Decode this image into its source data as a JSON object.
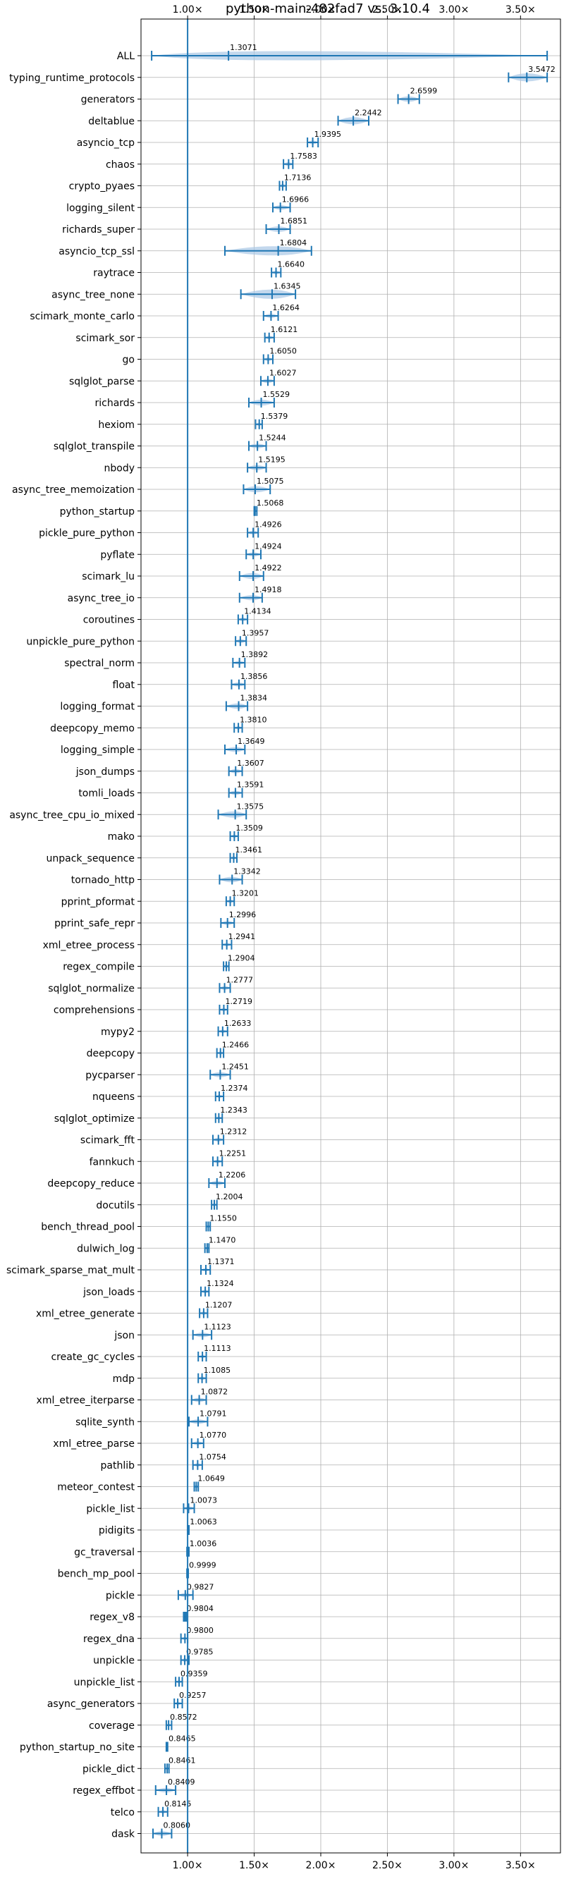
{
  "chart_data": {
    "type": "violin",
    "title": "python-main-482fad7 vs. 3.10.4",
    "xlabel": "",
    "ylabel": "",
    "x_scale": "linear",
    "xlim": [
      0.65,
      3.8
    ],
    "xticks": [
      1.0,
      1.5,
      2.0,
      2.5,
      3.0,
      3.5
    ],
    "xtick_labels": [
      "1.00×",
      "1.50×",
      "2.00×",
      "2.50×",
      "3.00×",
      "3.50×"
    ],
    "grid": true,
    "reference_line": 1.0,
    "colors": {
      "line": "#1f77b4",
      "violin": "#a9c8e6",
      "grid": "#b0b0b0",
      "axis": "#000000"
    },
    "categories": [
      {
        "name": "ALL",
        "value": 1.3071,
        "min": 0.73,
        "max": 3.7,
        "spread": 0.45
      },
      {
        "name": "typing_runtime_protocols",
        "value": 3.5472,
        "min": 3.41,
        "max": 3.7,
        "spread": 0.14
      },
      {
        "name": "generators",
        "value": 2.6599,
        "min": 2.58,
        "max": 2.74,
        "spread": 0.08
      },
      {
        "name": "deltablue",
        "value": 2.2442,
        "min": 2.13,
        "max": 2.36,
        "spread": 0.12
      },
      {
        "name": "asyncio_tcp",
        "value": 1.9395,
        "min": 1.9,
        "max": 1.98,
        "spread": 0.04
      },
      {
        "name": "chaos",
        "value": 1.7583,
        "min": 1.72,
        "max": 1.79,
        "spread": 0.04
      },
      {
        "name": "crypto_pyaes",
        "value": 1.7136,
        "min": 1.69,
        "max": 1.74,
        "spread": 0.03
      },
      {
        "name": "logging_silent",
        "value": 1.6966,
        "min": 1.64,
        "max": 1.77,
        "spread": 0.06
      },
      {
        "name": "richards_super",
        "value": 1.6851,
        "min": 1.59,
        "max": 1.77,
        "spread": 0.08
      },
      {
        "name": "asyncio_tcp_ssl",
        "value": 1.6804,
        "min": 1.28,
        "max": 1.93,
        "spread": 0.3
      },
      {
        "name": "raytrace",
        "value": 1.664,
        "min": 1.63,
        "max": 1.7,
        "spread": 0.03
      },
      {
        "name": "async_tree_none",
        "value": 1.6345,
        "min": 1.4,
        "max": 1.81,
        "spread": 0.2
      },
      {
        "name": "scimark_monte_carlo",
        "value": 1.6264,
        "min": 1.57,
        "max": 1.68,
        "spread": 0.05
      },
      {
        "name": "scimark_sor",
        "value": 1.6121,
        "min": 1.58,
        "max": 1.65,
        "spread": 0.03
      },
      {
        "name": "go",
        "value": 1.605,
        "min": 1.57,
        "max": 1.64,
        "spread": 0.03
      },
      {
        "name": "sqlglot_parse",
        "value": 1.6027,
        "min": 1.55,
        "max": 1.65,
        "spread": 0.05
      },
      {
        "name": "richards",
        "value": 1.5529,
        "min": 1.46,
        "max": 1.65,
        "spread": 0.09
      },
      {
        "name": "hexiom",
        "value": 1.5379,
        "min": 1.51,
        "max": 1.56,
        "spread": 0.02
      },
      {
        "name": "sqlglot_transpile",
        "value": 1.5244,
        "min": 1.46,
        "max": 1.59,
        "spread": 0.06
      },
      {
        "name": "nbody",
        "value": 1.5195,
        "min": 1.45,
        "max": 1.59,
        "spread": 0.07
      },
      {
        "name": "async_tree_memoization",
        "value": 1.5075,
        "min": 1.42,
        "max": 1.62,
        "spread": 0.09
      },
      {
        "name": "python_startup",
        "value": 1.5068,
        "min": 1.5,
        "max": 1.52,
        "spread": 0.01
      },
      {
        "name": "pickle_pure_python",
        "value": 1.4926,
        "min": 1.45,
        "max": 1.53,
        "spread": 0.04
      },
      {
        "name": "pyflate",
        "value": 1.4924,
        "min": 1.44,
        "max": 1.55,
        "spread": 0.05
      },
      {
        "name": "scimark_lu",
        "value": 1.4922,
        "min": 1.39,
        "max": 1.57,
        "spread": 0.09
      },
      {
        "name": "async_tree_io",
        "value": 1.4918,
        "min": 1.39,
        "max": 1.56,
        "spread": 0.07
      },
      {
        "name": "coroutines",
        "value": 1.4134,
        "min": 1.38,
        "max": 1.45,
        "spread": 0.03
      },
      {
        "name": "unpickle_pure_python",
        "value": 1.3957,
        "min": 1.36,
        "max": 1.44,
        "spread": 0.04
      },
      {
        "name": "spectral_norm",
        "value": 1.3892,
        "min": 1.34,
        "max": 1.43,
        "spread": 0.04
      },
      {
        "name": "float",
        "value": 1.3856,
        "min": 1.33,
        "max": 1.43,
        "spread": 0.05
      },
      {
        "name": "logging_format",
        "value": 1.3834,
        "min": 1.29,
        "max": 1.45,
        "spread": 0.08
      },
      {
        "name": "deepcopy_memo",
        "value": 1.381,
        "min": 1.35,
        "max": 1.41,
        "spread": 0.03
      },
      {
        "name": "logging_simple",
        "value": 1.3649,
        "min": 1.28,
        "max": 1.43,
        "spread": 0.07
      },
      {
        "name": "json_dumps",
        "value": 1.3607,
        "min": 1.31,
        "max": 1.41,
        "spread": 0.05
      },
      {
        "name": "tomli_loads",
        "value": 1.3591,
        "min": 1.31,
        "max": 1.41,
        "spread": 0.05
      },
      {
        "name": "async_tree_cpu_io_mixed",
        "value": 1.3575,
        "min": 1.23,
        "max": 1.44,
        "spread": 0.1
      },
      {
        "name": "mako",
        "value": 1.3509,
        "min": 1.32,
        "max": 1.38,
        "spread": 0.03
      },
      {
        "name": "unpack_sequence",
        "value": 1.3461,
        "min": 1.32,
        "max": 1.37,
        "spread": 0.02
      },
      {
        "name": "tornado_http",
        "value": 1.3342,
        "min": 1.24,
        "max": 1.41,
        "spread": 0.08
      },
      {
        "name": "pprint_pformat",
        "value": 1.3201,
        "min": 1.29,
        "max": 1.35,
        "spread": 0.03
      },
      {
        "name": "pprint_safe_repr",
        "value": 1.2996,
        "min": 1.25,
        "max": 1.35,
        "spread": 0.05
      },
      {
        "name": "xml_etree_process",
        "value": 1.2941,
        "min": 1.26,
        "max": 1.33,
        "spread": 0.03
      },
      {
        "name": "regex_compile",
        "value": 1.2904,
        "min": 1.27,
        "max": 1.31,
        "spread": 0.02
      },
      {
        "name": "sqlglot_normalize",
        "value": 1.2777,
        "min": 1.24,
        "max": 1.32,
        "spread": 0.04
      },
      {
        "name": "comprehensions",
        "value": 1.2719,
        "min": 1.24,
        "max": 1.3,
        "spread": 0.03
      },
      {
        "name": "mypy2",
        "value": 1.2633,
        "min": 1.23,
        "max": 1.3,
        "spread": 0.03
      },
      {
        "name": "deepcopy",
        "value": 1.2466,
        "min": 1.22,
        "max": 1.27,
        "spread": 0.02
      },
      {
        "name": "pycparser",
        "value": 1.2451,
        "min": 1.17,
        "max": 1.32,
        "spread": 0.07
      },
      {
        "name": "nqueens",
        "value": 1.2374,
        "min": 1.21,
        "max": 1.27,
        "spread": 0.03
      },
      {
        "name": "sqlglot_optimize",
        "value": 1.2343,
        "min": 1.21,
        "max": 1.26,
        "spread": 0.02
      },
      {
        "name": "scimark_fft",
        "value": 1.2312,
        "min": 1.19,
        "max": 1.27,
        "spread": 0.04
      },
      {
        "name": "fannkuch",
        "value": 1.2251,
        "min": 1.19,
        "max": 1.26,
        "spread": 0.03
      },
      {
        "name": "deepcopy_reduce",
        "value": 1.2206,
        "min": 1.16,
        "max": 1.28,
        "spread": 0.06
      },
      {
        "name": "docutils",
        "value": 1.2004,
        "min": 1.18,
        "max": 1.22,
        "spread": 0.02
      },
      {
        "name": "bench_thread_pool",
        "value": 1.155,
        "min": 1.14,
        "max": 1.17,
        "spread": 0.01
      },
      {
        "name": "dulwich_log",
        "value": 1.147,
        "min": 1.13,
        "max": 1.16,
        "spread": 0.01
      },
      {
        "name": "scimark_sparse_mat_mult",
        "value": 1.1371,
        "min": 1.1,
        "max": 1.17,
        "spread": 0.03
      },
      {
        "name": "json_loads",
        "value": 1.1324,
        "min": 1.1,
        "max": 1.16,
        "spread": 0.03
      },
      {
        "name": "xml_etree_generate",
        "value": 1.1207,
        "min": 1.09,
        "max": 1.15,
        "spread": 0.03
      },
      {
        "name": "json",
        "value": 1.1123,
        "min": 1.04,
        "max": 1.18,
        "spread": 0.06
      },
      {
        "name": "create_gc_cycles",
        "value": 1.1113,
        "min": 1.08,
        "max": 1.14,
        "spread": 0.03
      },
      {
        "name": "mdp",
        "value": 1.1085,
        "min": 1.08,
        "max": 1.14,
        "spread": 0.03
      },
      {
        "name": "xml_etree_iterparse",
        "value": 1.0872,
        "min": 1.03,
        "max": 1.14,
        "spread": 0.05
      },
      {
        "name": "sqlite_synth",
        "value": 1.0791,
        "min": 1.01,
        "max": 1.15,
        "spread": 0.06
      },
      {
        "name": "xml_etree_parse",
        "value": 1.077,
        "min": 1.03,
        "max": 1.12,
        "spread": 0.04
      },
      {
        "name": "pathlib",
        "value": 1.0754,
        "min": 1.04,
        "max": 1.11,
        "spread": 0.03
      },
      {
        "name": "meteor_contest",
        "value": 1.0649,
        "min": 1.05,
        "max": 1.08,
        "spread": 0.015
      },
      {
        "name": "pickle_list",
        "value": 1.0073,
        "min": 0.97,
        "max": 1.05,
        "spread": 0.04
      },
      {
        "name": "pidigits",
        "value": 1.0063,
        "min": 1.0,
        "max": 1.01,
        "spread": 0.005
      },
      {
        "name": "gc_traversal",
        "value": 1.0036,
        "min": 0.995,
        "max": 1.01,
        "spread": 0.005
      },
      {
        "name": "bench_mp_pool",
        "value": 0.9999,
        "min": 0.995,
        "max": 1.005,
        "spread": 0.003
      },
      {
        "name": "pickle",
        "value": 0.9827,
        "min": 0.93,
        "max": 1.04,
        "spread": 0.05
      },
      {
        "name": "regex_v8",
        "value": 0.9804,
        "min": 0.97,
        "max": 0.99,
        "spread": 0.008
      },
      {
        "name": "regex_dna",
        "value": 0.98,
        "min": 0.95,
        "max": 1.0,
        "spread": 0.02
      },
      {
        "name": "unpickle",
        "value": 0.9785,
        "min": 0.95,
        "max": 1.01,
        "spread": 0.03
      },
      {
        "name": "unpickle_list",
        "value": 0.9359,
        "min": 0.91,
        "max": 0.96,
        "spread": 0.02
      },
      {
        "name": "async_generators",
        "value": 0.9257,
        "min": 0.9,
        "max": 0.96,
        "spread": 0.03
      },
      {
        "name": "coverage",
        "value": 0.8572,
        "min": 0.84,
        "max": 0.88,
        "spread": 0.015
      },
      {
        "name": "python_startup_no_site",
        "value": 0.8465,
        "min": 0.84,
        "max": 0.85,
        "spread": 0.005
      },
      {
        "name": "pickle_dict",
        "value": 0.8461,
        "min": 0.83,
        "max": 0.86,
        "spread": 0.01
      },
      {
        "name": "regex_effbot",
        "value": 0.8409,
        "min": 0.76,
        "max": 0.91,
        "spread": 0.06
      },
      {
        "name": "telco",
        "value": 0.8145,
        "min": 0.78,
        "max": 0.85,
        "spread": 0.03
      },
      {
        "name": "dask",
        "value": 0.806,
        "min": 0.74,
        "max": 0.88,
        "spread": 0.06
      }
    ]
  }
}
